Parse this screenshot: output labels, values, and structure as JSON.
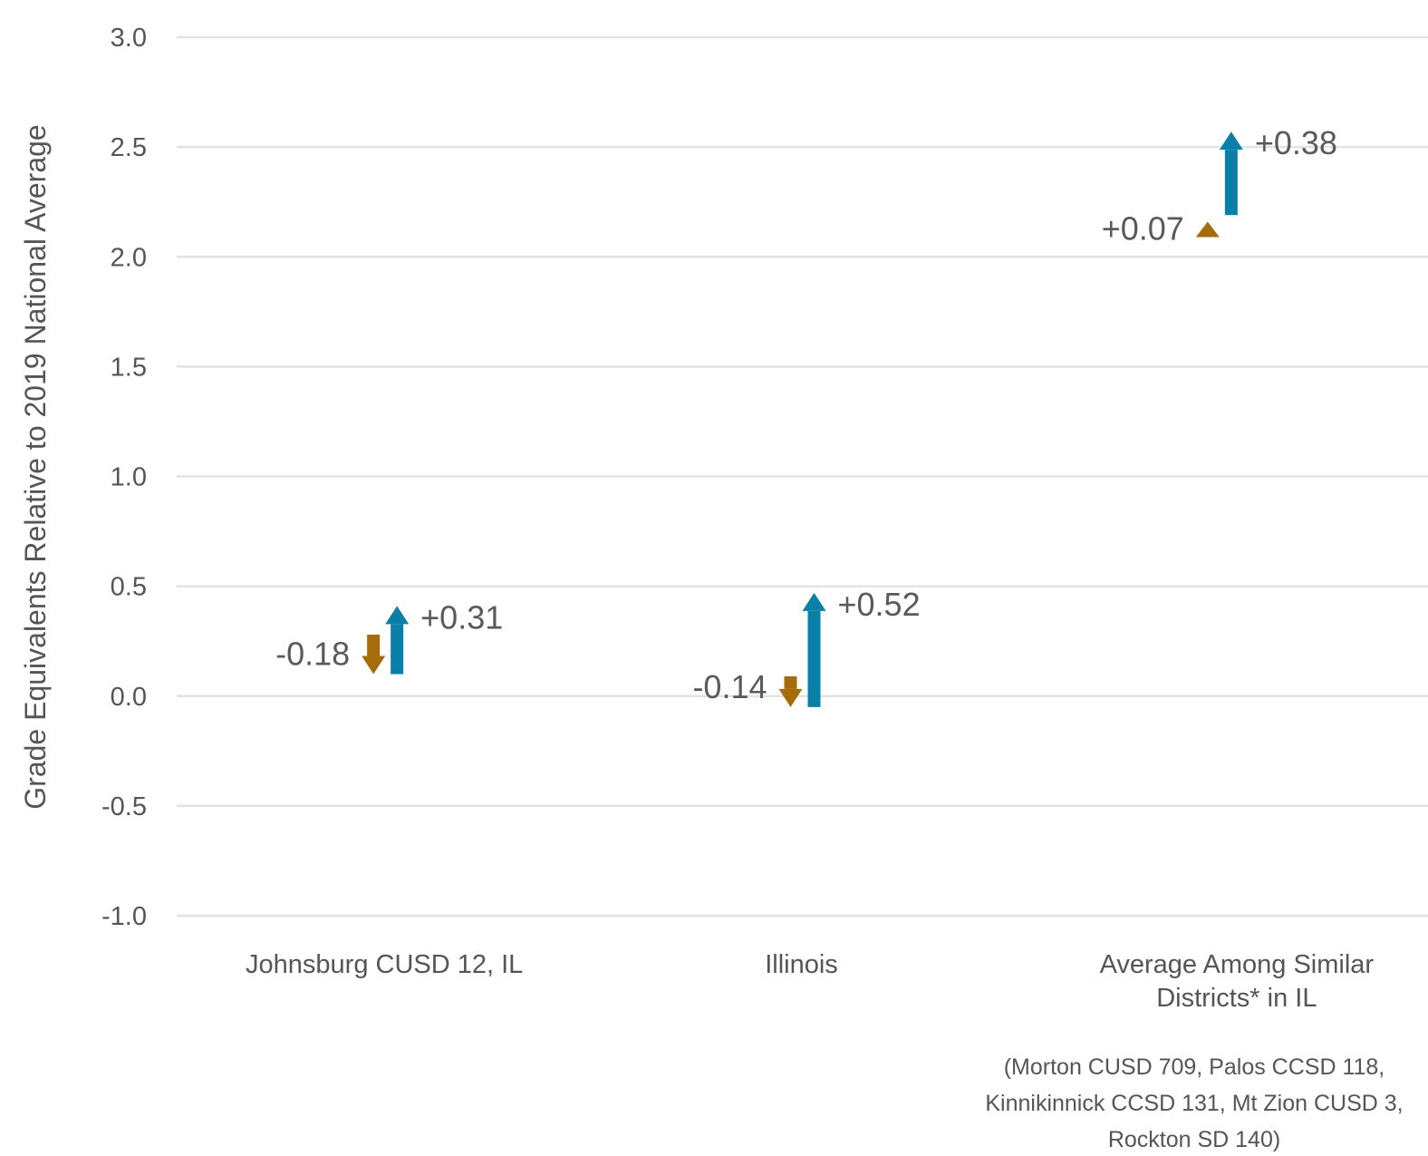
{
  "chart_data": {
    "type": "arrow",
    "ylabel": "Grade Equivalents Relative to 2019 National Average",
    "ylim": [
      -1.0,
      3.0
    ],
    "yticks": [
      "3.0",
      "2.5",
      "2.0",
      "1.5",
      "1.0",
      "0.5",
      "0.0",
      "-0.5",
      "-1.0"
    ],
    "grid": true,
    "categories": [
      {
        "lines": [
          "Johnsburg CUSD 12, IL"
        ]
      },
      {
        "lines": [
          "Illinois"
        ]
      },
      {
        "lines": [
          "Average Among Similar",
          "Districts* in IL"
        ]
      }
    ],
    "series": [
      {
        "color": "#a66b0a",
        "points": [
          {
            "start": 0.28,
            "change": -0.18,
            "label": "-0.18"
          },
          {
            "start": 0.09,
            "change": -0.14,
            "label": "-0.14"
          },
          {
            "start": 2.09,
            "change": 0.07,
            "label": "+0.07"
          }
        ]
      },
      {
        "color": "#0a80a8",
        "points": [
          {
            "start": 0.1,
            "change": 0.31,
            "label": "+0.31"
          },
          {
            "start": -0.05,
            "change": 0.52,
            "label": "+0.52"
          },
          {
            "start": 2.19,
            "change": 0.38,
            "label": "+0.38"
          }
        ]
      }
    ],
    "footnote": [
      "(Morton CUSD 709, Palos CCSD 118,",
      "Kinnikinnick CCSD 131, Mt Zion CUSD 3,",
      "Rockton SD 140)"
    ]
  }
}
